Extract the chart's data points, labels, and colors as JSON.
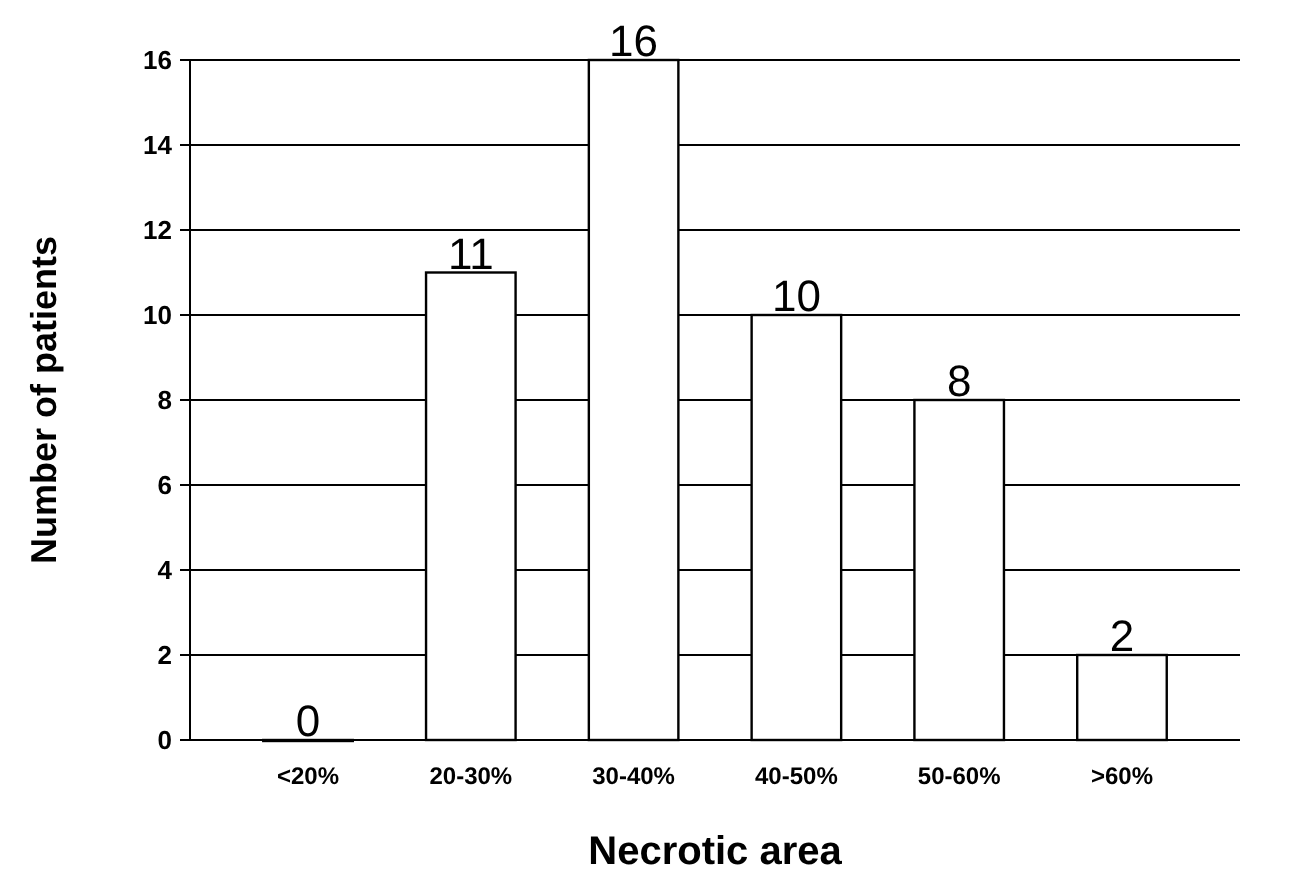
{
  "chart_data": {
    "type": "bar",
    "xlabel": "Necrotic area",
    "ylabel": "Number of patients",
    "categories": [
      "<20%",
      "20-30%",
      "30-40%",
      "40-50%",
      "50-60%",
      ">60%"
    ],
    "values": [
      0,
      11,
      16,
      10,
      8,
      2
    ],
    "color": "#ffffff",
    "ylim": [
      0,
      16
    ],
    "yticks": [
      0,
      2,
      4,
      6,
      8,
      10,
      12,
      14,
      16
    ],
    "grid": "y",
    "data_labels": true
  }
}
